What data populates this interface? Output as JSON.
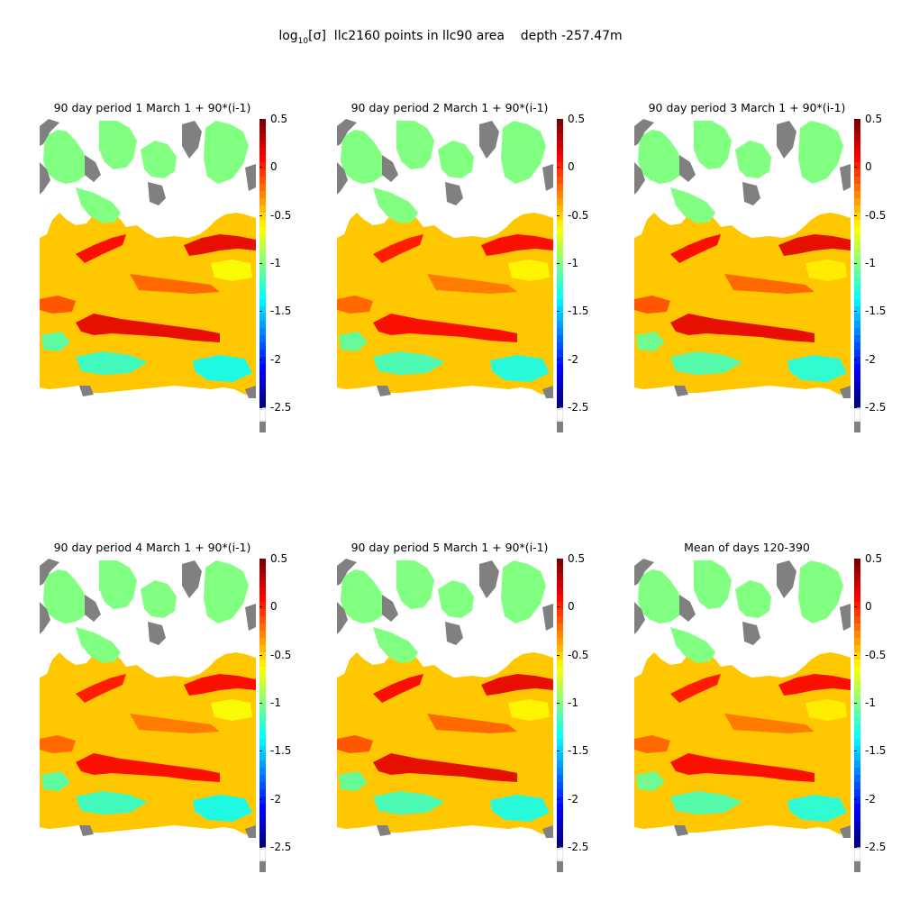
{
  "figure": {
    "title_prefix": "log",
    "title_subscript": "10",
    "title_bracket": "[σ]",
    "title_rest": "  llc2160 points in llc90 area    depth -257.47m"
  },
  "colorbar": {
    "ticks": [
      "0.5",
      "0",
      "-0.5",
      "-1",
      "-1.5",
      "-2",
      "-2.5"
    ],
    "range": [
      -2.5,
      0.5
    ],
    "colormap": "jet",
    "land_color": "#808080"
  },
  "panels": [
    {
      "title": "90 day period 1 March 1 + 90*(i-1)"
    },
    {
      "title": "90 day period 2 March 1 + 90*(i-1)"
    },
    {
      "title": "90 day period 3 March 1 + 90*(i-1)"
    },
    {
      "title": "90 day period 4 March 1 + 90*(i-1)"
    },
    {
      "title": "90 day period 5 March 1 + 90*(i-1)"
    },
    {
      "title": "Mean of days 120-390"
    }
  ]
}
